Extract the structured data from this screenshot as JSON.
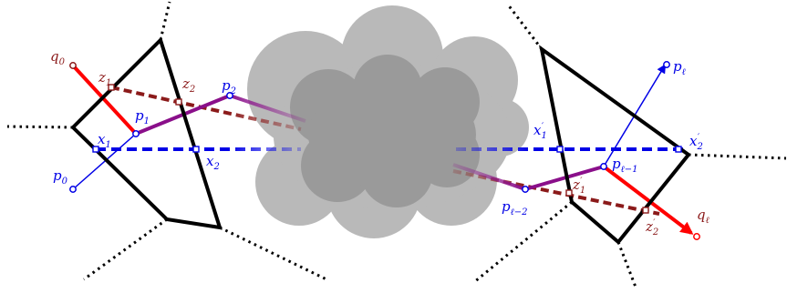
{
  "colors": {
    "black": "#000000",
    "blue": "#0000e6",
    "dark_red": "#8b1a1a",
    "red": "#ff0000",
    "purple": "#8a0f8a",
    "cloud_outer": "#b9b9b9",
    "cloud_inner": "#9a9a9a"
  },
  "labels": {
    "q0": {
      "base": "q",
      "sub": "0"
    },
    "z1": {
      "base": "z",
      "sub": "1"
    },
    "z2": {
      "base": "z",
      "sub": "2"
    },
    "p2": {
      "base": "p",
      "sub": "2"
    },
    "p1": {
      "base": "p",
      "sub": "1"
    },
    "x1": {
      "base": "x",
      "sub": "1"
    },
    "x2": {
      "base": "x",
      "sub": "2"
    },
    "p0": {
      "base": "p",
      "sub": "0"
    },
    "pl": {
      "base": "p",
      "sub": "ℓ"
    },
    "x1p": {
      "base": "x",
      "sub": "1",
      "sup": "′"
    },
    "x2p": {
      "base": "x",
      "sub": "2",
      "sup": "′"
    },
    "plm1": {
      "base": "p",
      "sub": "ℓ−1"
    },
    "z1p": {
      "base": "z",
      "sub": "1",
      "sup": "′"
    },
    "z2p": {
      "base": "z",
      "sub": "2",
      "sup": "′"
    },
    "plm2": {
      "base": "p",
      "sub": "ℓ−2"
    },
    "ql": {
      "base": "q",
      "sub": "ℓ"
    }
  }
}
